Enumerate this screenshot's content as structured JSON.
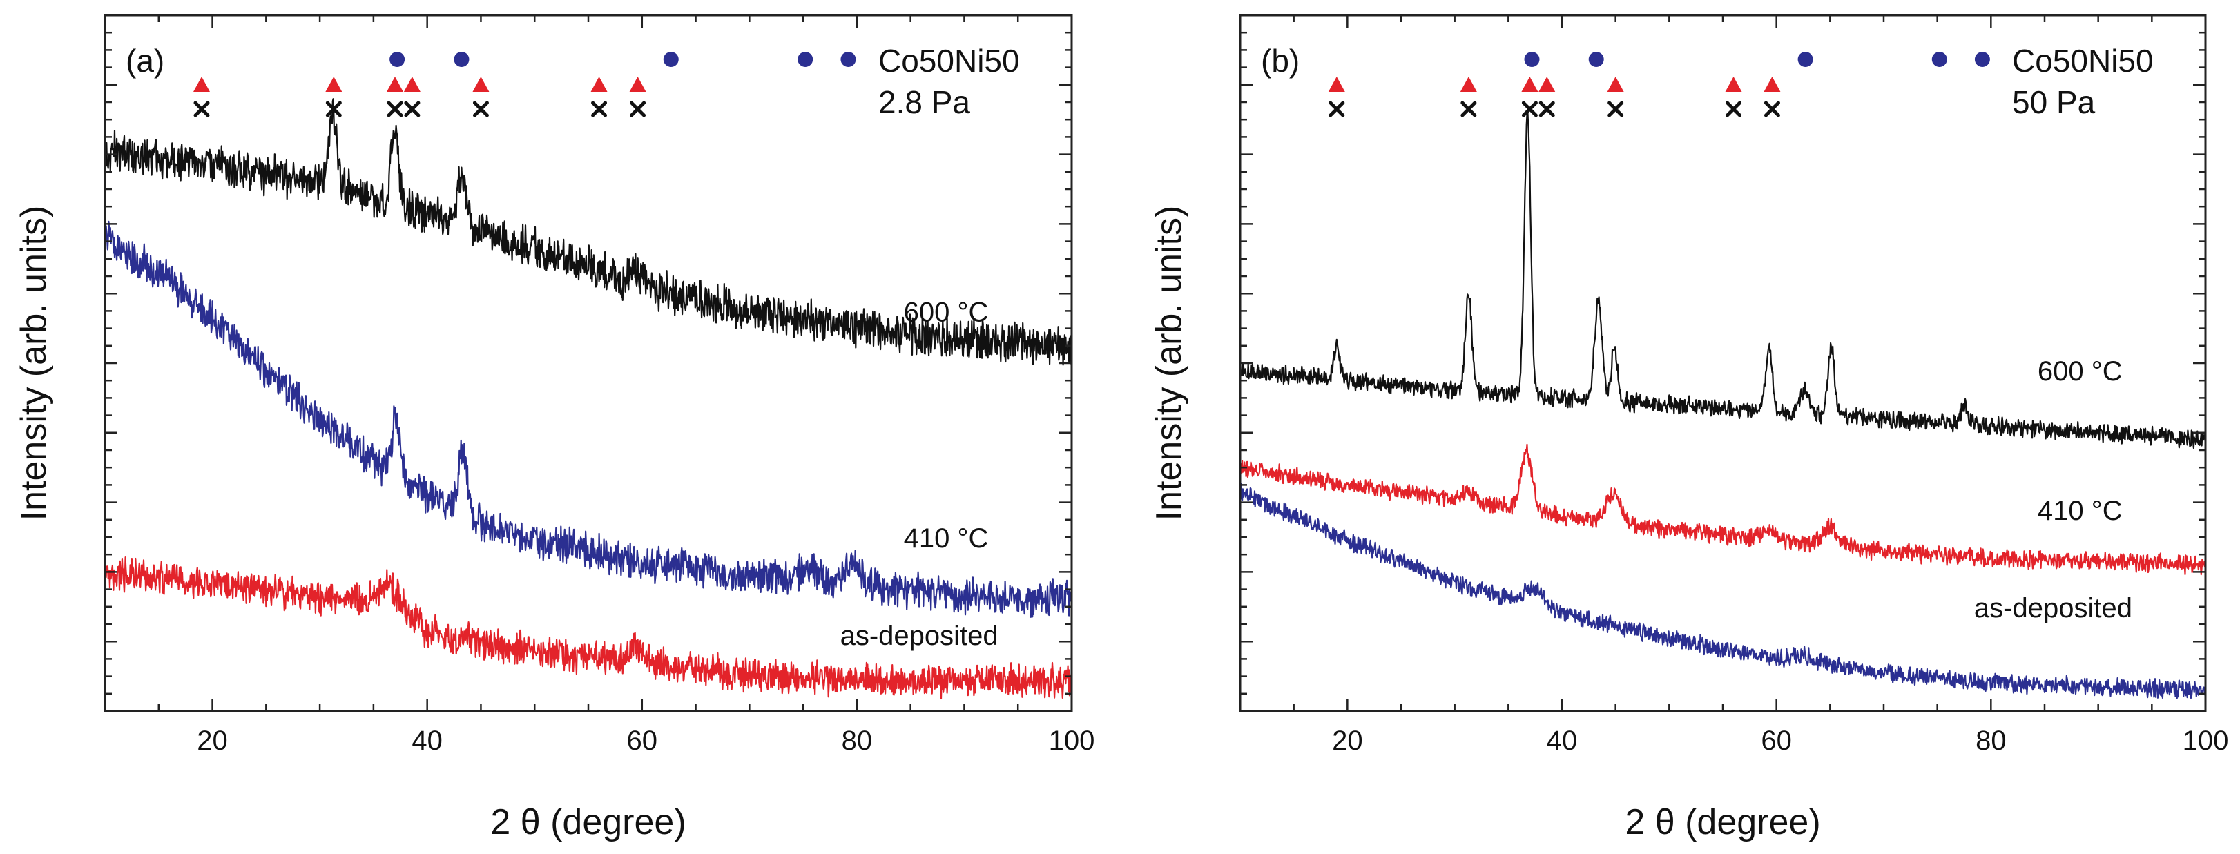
{
  "chart_data": [
    {
      "type": "line",
      "panel_label": "(a)",
      "legend": [
        "Co50Ni50",
        "2.8 Pa"
      ],
      "xlabel_main": "2 ",
      "xlabel_theta": "θ",
      "xlabel_unit": " (degree)",
      "ylabel": "Intensity (arb. units)",
      "xlim": [
        10,
        100
      ],
      "ylim": [
        0,
        100
      ],
      "x_ticks": [
        20,
        40,
        60,
        80,
        100
      ],
      "x_tick_labels": [
        "20",
        "40",
        "60",
        "80",
        "100"
      ],
      "y_tick_labels_shown": false,
      "markers": {
        "triangle": {
          "color": "#e3232a",
          "positions": [
            19,
            31.3,
            37,
            38.6,
            45,
            56,
            59.6
          ]
        },
        "cross": {
          "color": "#111111",
          "positions": [
            19,
            31.3,
            37,
            38.6,
            45,
            56,
            59.6
          ]
        },
        "circle": {
          "color": "#2b2f91",
          "positions": [
            37.2,
            43.2,
            62.7,
            75.2,
            79.2
          ]
        }
      },
      "series": [
        {
          "name": "600 °C",
          "label_text": "600 °C",
          "color": "#111111",
          "label_x": 88.3,
          "label_y": 56,
          "background": [
            [
              10,
              80.5
            ],
            [
              20,
              78.5
            ],
            [
              30,
              76
            ],
            [
              40,
              71.5
            ],
            [
              50,
              66.5
            ],
            [
              60,
              61
            ],
            [
              70,
              57.5
            ],
            [
              80,
              55
            ],
            [
              90,
              53.5
            ],
            [
              100,
              52.5
            ]
          ],
          "noise": 2.2,
          "peaks": [
            {
              "x": 31.2,
              "height": 10.5,
              "width": 0.35
            },
            {
              "x": 37,
              "height": 11,
              "width": 0.35
            },
            {
              "x": 43.2,
              "height": 8,
              "width": 0.4
            },
            {
              "x": 59.5,
              "height": 2,
              "width": 0.5
            }
          ]
        },
        {
          "name": "410 °C",
          "label_text": "410 °C",
          "color": "#2b2f91",
          "label_x": 88.3,
          "label_y": 23.5,
          "background": [
            [
              10,
              68
            ],
            [
              15,
              63
            ],
            [
              20,
              56.5
            ],
            [
              25,
              49
            ],
            [
              30,
              42
            ],
            [
              35,
              36
            ],
            [
              40,
              31
            ],
            [
              45,
              27
            ],
            [
              50,
              24.5
            ],
            [
              60,
              21.5
            ],
            [
              70,
              19.5
            ],
            [
              80,
              18
            ],
            [
              90,
              16.5
            ],
            [
              100,
              16
            ]
          ],
          "noise": 2.0,
          "peaks": [
            {
              "x": 37.1,
              "height": 8,
              "width": 0.4
            },
            {
              "x": 43.3,
              "height": 9,
              "width": 0.4
            },
            {
              "x": 75.5,
              "height": 2.5,
              "width": 0.8
            },
            {
              "x": 79.5,
              "height": 3,
              "width": 0.8
            }
          ]
        },
        {
          "name": "as-deposited",
          "label_text": "as-deposited",
          "color": "#e3232a",
          "label_x": 85.8,
          "label_y": 9.5,
          "background": [
            [
              10,
              20
            ],
            [
              20,
              18.5
            ],
            [
              30,
              16.5
            ],
            [
              35,
              15.5
            ],
            [
              40,
              11.5
            ],
            [
              50,
              8.5
            ],
            [
              60,
              7
            ],
            [
              70,
              5
            ],
            [
              80,
              4.5
            ],
            [
              100,
              4.5
            ]
          ],
          "noise": 1.9,
          "peaks": [
            {
              "x": 36.5,
              "height": 3.5,
              "width": 1.2
            },
            {
              "x": 59.5,
              "height": 2,
              "width": 0.8
            }
          ]
        }
      ]
    },
    {
      "type": "line",
      "panel_label": "(b)",
      "legend": [
        "Co50Ni50",
        "50 Pa"
      ],
      "xlabel_main": "2 ",
      "xlabel_theta": "θ",
      "xlabel_unit": " (degree)",
      "ylabel": "Intensity (arb. units)",
      "xlim": [
        10,
        100
      ],
      "ylim": [
        0,
        100
      ],
      "x_ticks": [
        20,
        40,
        60,
        80,
        100
      ],
      "x_tick_labels": [
        "20",
        "40",
        "60",
        "80",
        "100"
      ],
      "y_tick_labels_shown": false,
      "markers": {
        "triangle": {
          "color": "#e3232a",
          "positions": [
            19,
            31.3,
            37,
            38.6,
            45,
            56,
            59.6
          ]
        },
        "cross": {
          "color": "#111111",
          "positions": [
            19,
            31.3,
            37,
            38.6,
            45,
            56,
            59.6
          ]
        },
        "circle": {
          "color": "#2b2f91",
          "positions": [
            37.2,
            43.2,
            62.7,
            75.2,
            79.2
          ]
        }
      },
      "series": [
        {
          "name": "600 °C",
          "label_text": "600 °C",
          "color": "#111111",
          "label_x": 88.3,
          "label_y": 47.5,
          "background": [
            [
              10,
              49
            ],
            [
              20,
              47.5
            ],
            [
              30,
              46
            ],
            [
              40,
              45
            ],
            [
              50,
              44
            ],
            [
              60,
              43
            ],
            [
              70,
              42
            ],
            [
              80,
              41
            ],
            [
              90,
              40
            ],
            [
              100,
              39
            ]
          ],
          "noise": 1.0,
          "peaks": [
            {
              "x": 19,
              "height": 4.5,
              "width": 0.3
            },
            {
              "x": 31.3,
              "height": 14,
              "width": 0.3
            },
            {
              "x": 36.8,
              "height": 40,
              "width": 0.3
            },
            {
              "x": 43.4,
              "height": 14,
              "width": 0.35
            },
            {
              "x": 44.9,
              "height": 8,
              "width": 0.3
            },
            {
              "x": 59.3,
              "height": 9.5,
              "width": 0.3
            },
            {
              "x": 62.6,
              "height": 3.5,
              "width": 0.4
            },
            {
              "x": 65.1,
              "height": 10,
              "width": 0.3
            },
            {
              "x": 77.5,
              "height": 2.5,
              "width": 0.3
            }
          ]
        },
        {
          "name": "410 °C",
          "label_text": "410 °C",
          "color": "#e3232a",
          "label_x": 88.3,
          "label_y": 27.5,
          "background": [
            [
              10,
              35
            ],
            [
              20,
              32.5
            ],
            [
              30,
              30.5
            ],
            [
              40,
              28
            ],
            [
              50,
              26
            ],
            [
              60,
              24.5
            ],
            [
              70,
              23
            ],
            [
              80,
              22
            ],
            [
              90,
              21.5
            ],
            [
              100,
              21
            ]
          ],
          "noise": 1.0,
          "peaks": [
            {
              "x": 31.3,
              "height": 1.5,
              "width": 0.5
            },
            {
              "x": 36.7,
              "height": 8.5,
              "width": 0.5
            },
            {
              "x": 44.8,
              "height": 4,
              "width": 0.7
            },
            {
              "x": 59.3,
              "height": 1.5,
              "width": 0.7
            },
            {
              "x": 65,
              "height": 2.5,
              "width": 0.7
            }
          ]
        },
        {
          "name": "as-deposited",
          "label_text": "as-deposited",
          "color": "#2b2f91",
          "label_x": 85.8,
          "label_y": 13.5,
          "background": [
            [
              10,
              31.5
            ],
            [
              20,
              24.5
            ],
            [
              30,
              18.5
            ],
            [
              40,
              14
            ],
            [
              50,
              10.5
            ],
            [
              60,
              7.5
            ],
            [
              70,
              5.5
            ],
            [
              80,
              4
            ],
            [
              90,
              3.5
            ],
            [
              100,
              3
            ]
          ],
          "noise": 1.0,
          "peaks": [
            {
              "x": 37.5,
              "height": 2.5,
              "width": 1.0
            },
            {
              "x": 62.5,
              "height": 1,
              "width": 1.0
            }
          ]
        }
      ]
    }
  ]
}
